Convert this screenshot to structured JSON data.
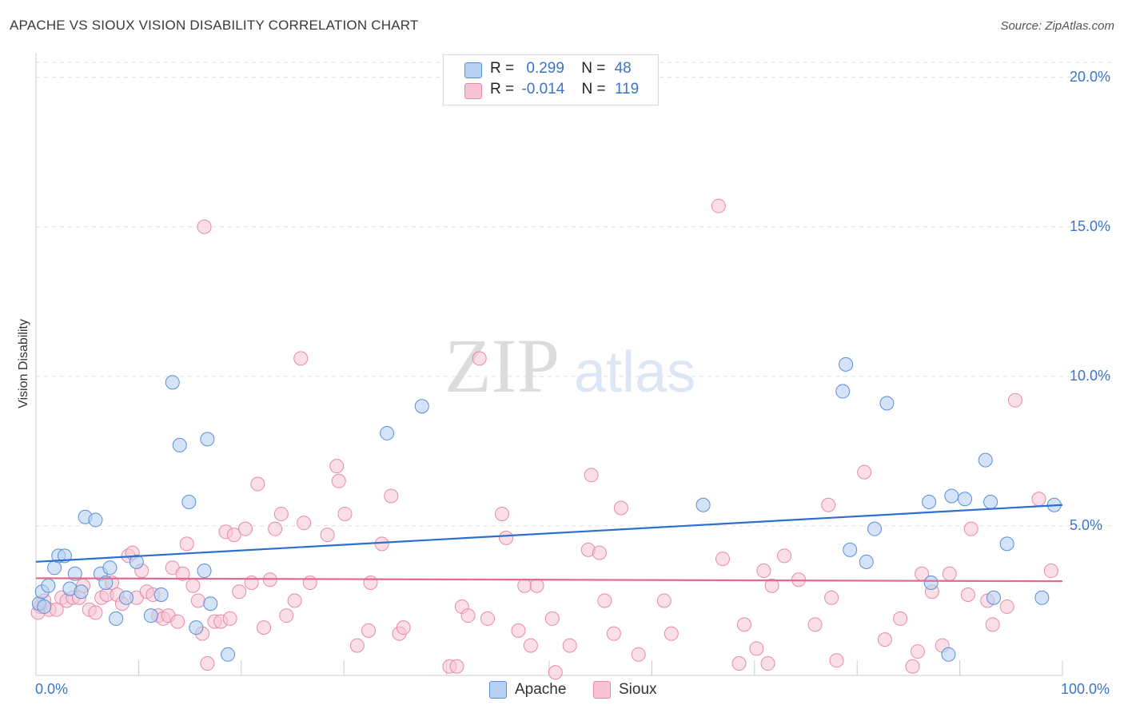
{
  "title": "APACHE VS SIOUX VISION DISABILITY CORRELATION CHART",
  "source": "Source: ZipAtlas.com",
  "watermark": {
    "zip": "ZIP",
    "atlas": "atlas"
  },
  "colors": {
    "apache_fill": "#b8d0f2",
    "apache_stroke": "#5a8fd6",
    "apache_line": "#2c6fcc",
    "sioux_fill": "#f8c4d4",
    "sioux_stroke": "#e68aa8",
    "sioux_line": "#e46a92",
    "tick_text": "#3c74c9",
    "grid": "#dddddd"
  },
  "legend_top": {
    "apache": {
      "r_label": "R =",
      "r_value": "0.299",
      "n_label": "N =",
      "n_value": "48"
    },
    "sioux": {
      "r_label": "R =",
      "r_value": "-0.014",
      "n_label": "N =",
      "n_value": "119"
    }
  },
  "chart_data": {
    "type": "scatter",
    "title": "APACHE VS SIOUX VISION DISABILITY CORRELATION CHART",
    "xlabel": "",
    "ylabel": "Vision Disability",
    "xlim": [
      0,
      100
    ],
    "ylim": [
      0,
      20.5
    ],
    "x_tick_labels": [
      "0.0%",
      "100.0%"
    ],
    "y_ticks": [
      5,
      10,
      15,
      20
    ],
    "y_tick_labels": [
      "5.0%",
      "10.0%",
      "15.0%",
      "20.0%"
    ],
    "grid": "horizontal dashed",
    "legend_position": "bottom-center",
    "series": [
      {
        "name": "Apache",
        "r": 0.299,
        "n": 48,
        "trend": [
          [
            0,
            3.8
          ],
          [
            100,
            5.7
          ]
        ],
        "points": [
          [
            0.3,
            2.4
          ],
          [
            0.6,
            2.8
          ],
          [
            1.2,
            3.0
          ],
          [
            1.8,
            3.6
          ],
          [
            2.2,
            4.0
          ],
          [
            2.8,
            4.0
          ],
          [
            3.3,
            2.9
          ],
          [
            3.8,
            3.4
          ],
          [
            4.4,
            2.8
          ],
          [
            4.8,
            5.3
          ],
          [
            5.8,
            5.2
          ],
          [
            6.3,
            3.4
          ],
          [
            6.8,
            3.1
          ],
          [
            7.2,
            3.6
          ],
          [
            7.8,
            1.9
          ],
          [
            8.8,
            2.6
          ],
          [
            9.8,
            3.8
          ],
          [
            11.2,
            2.0
          ],
          [
            12.2,
            2.7
          ],
          [
            13.3,
            9.8
          ],
          [
            14.0,
            7.7
          ],
          [
            14.9,
            5.8
          ],
          [
            15.6,
            1.6
          ],
          [
            16.4,
            3.5
          ],
          [
            16.7,
            7.9
          ],
          [
            17.0,
            2.4
          ],
          [
            18.7,
            0.7
          ],
          [
            34.2,
            8.1
          ],
          [
            37.6,
            9.0
          ],
          [
            65.0,
            5.7
          ],
          [
            78.6,
            9.5
          ],
          [
            78.9,
            10.4
          ],
          [
            79.3,
            4.2
          ],
          [
            80.9,
            3.8
          ],
          [
            81.7,
            4.9
          ],
          [
            82.9,
            9.1
          ],
          [
            87.0,
            5.8
          ],
          [
            87.2,
            3.1
          ],
          [
            88.9,
            0.7
          ],
          [
            89.2,
            6.0
          ],
          [
            90.5,
            5.9
          ],
          [
            92.5,
            7.2
          ],
          [
            93.0,
            5.8
          ],
          [
            93.3,
            2.6
          ],
          [
            94.6,
            4.4
          ],
          [
            98.0,
            2.6
          ],
          [
            99.2,
            5.7
          ],
          [
            0.8,
            2.3
          ]
        ]
      },
      {
        "name": "Sioux",
        "r": -0.014,
        "n": 119,
        "trend": [
          [
            0,
            3.25
          ],
          [
            100,
            3.15
          ]
        ],
        "points": [
          [
            0.4,
            2.3
          ],
          [
            0.8,
            2.5
          ],
          [
            1.3,
            2.2
          ],
          [
            2.0,
            2.2
          ],
          [
            2.5,
            2.6
          ],
          [
            3.0,
            2.5
          ],
          [
            3.6,
            2.6
          ],
          [
            4.2,
            2.6
          ],
          [
            4.6,
            3.0
          ],
          [
            5.2,
            2.2
          ],
          [
            5.8,
            2.1
          ],
          [
            6.4,
            2.6
          ],
          [
            6.9,
            2.7
          ],
          [
            7.4,
            3.1
          ],
          [
            7.9,
            2.7
          ],
          [
            8.4,
            2.4
          ],
          [
            9.0,
            4.0
          ],
          [
            9.4,
            4.1
          ],
          [
            9.8,
            2.6
          ],
          [
            10.3,
            3.5
          ],
          [
            10.8,
            2.8
          ],
          [
            11.4,
            2.7
          ],
          [
            11.9,
            2.0
          ],
          [
            12.4,
            1.9
          ],
          [
            12.9,
            2.0
          ],
          [
            13.3,
            3.6
          ],
          [
            13.8,
            1.8
          ],
          [
            14.3,
            3.4
          ],
          [
            14.7,
            4.4
          ],
          [
            15.3,
            3.0
          ],
          [
            15.8,
            2.5
          ],
          [
            16.2,
            1.4
          ],
          [
            16.4,
            15.0
          ],
          [
            16.7,
            0.4
          ],
          [
            17.4,
            1.8
          ],
          [
            18.0,
            1.8
          ],
          [
            18.5,
            4.8
          ],
          [
            18.9,
            1.9
          ],
          [
            19.3,
            4.7
          ],
          [
            19.8,
            2.8
          ],
          [
            20.4,
            4.9
          ],
          [
            21.0,
            3.1
          ],
          [
            21.6,
            6.4
          ],
          [
            22.2,
            1.6
          ],
          [
            22.8,
            3.2
          ],
          [
            23.3,
            4.9
          ],
          [
            23.9,
            5.4
          ],
          [
            24.4,
            2.0
          ],
          [
            25.2,
            2.5
          ],
          [
            25.8,
            10.6
          ],
          [
            26.1,
            5.1
          ],
          [
            26.7,
            3.1
          ],
          [
            28.4,
            4.7
          ],
          [
            29.3,
            7.0
          ],
          [
            29.5,
            6.5
          ],
          [
            30.1,
            5.4
          ],
          [
            31.3,
            1.0
          ],
          [
            32.4,
            1.5
          ],
          [
            32.6,
            3.1
          ],
          [
            33.7,
            4.4
          ],
          [
            34.6,
            6.0
          ],
          [
            35.4,
            1.4
          ],
          [
            35.8,
            1.6
          ],
          [
            40.3,
            0.3
          ],
          [
            41.0,
            0.3
          ],
          [
            41.5,
            2.3
          ],
          [
            42.1,
            2.0
          ],
          [
            43.2,
            10.6
          ],
          [
            44.0,
            1.9
          ],
          [
            45.4,
            5.4
          ],
          [
            45.8,
            4.6
          ],
          [
            47.0,
            1.5
          ],
          [
            47.6,
            3.0
          ],
          [
            48.2,
            1.0
          ],
          [
            48.8,
            3.0
          ],
          [
            50.3,
            1.9
          ],
          [
            50.6,
            0.1
          ],
          [
            52.0,
            1.0
          ],
          [
            53.8,
            4.2
          ],
          [
            54.1,
            6.7
          ],
          [
            54.9,
            4.1
          ],
          [
            55.4,
            2.5
          ],
          [
            56.3,
            1.4
          ],
          [
            57.0,
            5.6
          ],
          [
            58.7,
            0.7
          ],
          [
            61.2,
            2.5
          ],
          [
            61.9,
            1.4
          ],
          [
            66.5,
            15.7
          ],
          [
            66.9,
            3.9
          ],
          [
            68.5,
            0.4
          ],
          [
            69.0,
            1.7
          ],
          [
            70.2,
            0.9
          ],
          [
            70.9,
            3.5
          ],
          [
            71.3,
            0.4
          ],
          [
            71.7,
            3.0
          ],
          [
            72.9,
            4.0
          ],
          [
            74.3,
            3.2
          ],
          [
            75.9,
            1.7
          ],
          [
            77.2,
            5.7
          ],
          [
            77.5,
            2.6
          ],
          [
            78.0,
            0.5
          ],
          [
            80.7,
            6.8
          ],
          [
            82.7,
            1.2
          ],
          [
            84.2,
            1.9
          ],
          [
            85.4,
            0.3
          ],
          [
            85.9,
            0.8
          ],
          [
            86.3,
            3.4
          ],
          [
            87.3,
            2.8
          ],
          [
            88.3,
            1.0
          ],
          [
            89.0,
            3.4
          ],
          [
            90.8,
            2.7
          ],
          [
            91.1,
            4.9
          ],
          [
            92.7,
            2.5
          ],
          [
            93.2,
            1.7
          ],
          [
            94.6,
            2.3
          ],
          [
            95.4,
            9.2
          ],
          [
            97.7,
            5.9
          ],
          [
            98.9,
            3.5
          ],
          [
            0.2,
            2.1
          ]
        ]
      }
    ]
  },
  "legend_bottom": {
    "apache": "Apache",
    "sioux": "Sioux"
  }
}
